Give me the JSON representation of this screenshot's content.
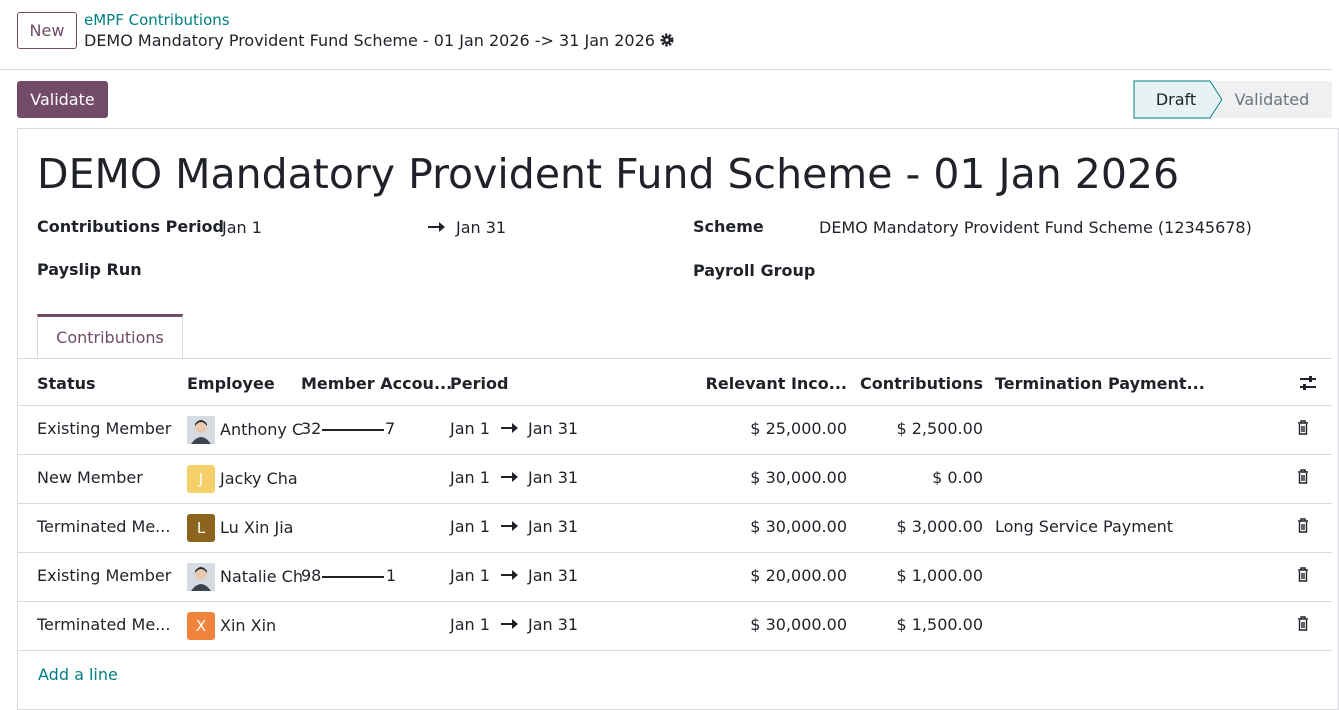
{
  "header": {
    "new_button": "New",
    "breadcrumb": "eMPF Contributions",
    "record_title": "DEMO Mandatory Provident Fund Scheme - 01 Jan 2026 -> 31 Jan 2026"
  },
  "actions": {
    "validate": "Validate"
  },
  "statusbar": {
    "stages": [
      "Draft",
      "Validated"
    ],
    "active": 0
  },
  "form": {
    "title": "DEMO Mandatory Provident Fund Scheme - 01 Jan 2026",
    "contributions_period": {
      "label": "Contributions Period",
      "from": "Jan 1",
      "to": "Jan 31"
    },
    "scheme": {
      "label": "Scheme",
      "value": "DEMO Mandatory Provident Fund Scheme (12345678)"
    },
    "payslip_run": {
      "label": "Payslip Run"
    },
    "payroll_group": {
      "label": "Payroll Group"
    }
  },
  "tab": "Contributions",
  "table": {
    "columns": [
      "Status",
      "Employee",
      "Member Accou...",
      "Period",
      "Relevant Inco...",
      "Contributions",
      "Termination Payment..."
    ],
    "rows": [
      {
        "status": "Existing Member",
        "employee": "Anthony C",
        "avatar": {
          "photo": true
        },
        "member_account": {
          "start": "32",
          "end": "7"
        },
        "period_from": "Jan 1",
        "period_to": "Jan 31",
        "relevant_income": "$ 25,000.00",
        "contributions": "$ 2,500.00",
        "termination_payment": null
      },
      {
        "status": "New Member",
        "employee": "Jacky Cha",
        "avatar": {
          "letter": "J",
          "color": "#f5cf6a"
        },
        "member_account": null,
        "period_from": "Jan 1",
        "period_to": "Jan 31",
        "relevant_income": "$ 30,000.00",
        "contributions": "$ 0.00",
        "termination_payment": null
      },
      {
        "status": "Terminated Me...",
        "employee": "Lu Xin Jia",
        "avatar": {
          "letter": "L",
          "color": "#8c6420"
        },
        "member_account": null,
        "period_from": "Jan 1",
        "period_to": "Jan 31",
        "relevant_income": "$ 30,000.00",
        "contributions": "$ 3,000.00",
        "termination_payment": "Long Service Payment"
      },
      {
        "status": "Existing Member",
        "employee": "Natalie Ch",
        "avatar": {
          "photo": true
        },
        "member_account": {
          "start": "98",
          "end": "1"
        },
        "period_from": "Jan 1",
        "period_to": "Jan 31",
        "relevant_income": "$ 20,000.00",
        "contributions": "$ 1,000.00",
        "termination_payment": null
      },
      {
        "status": "Terminated Me...",
        "employee": "Xin Xin",
        "avatar": {
          "letter": "X",
          "color": "#f0843c"
        },
        "member_account": null,
        "period_from": "Jan 1",
        "period_to": "Jan 31",
        "relevant_income": "$ 30,000.00",
        "contributions": "$ 1,500.00",
        "termination_payment": null
      }
    ],
    "add_line": "Add a line"
  }
}
